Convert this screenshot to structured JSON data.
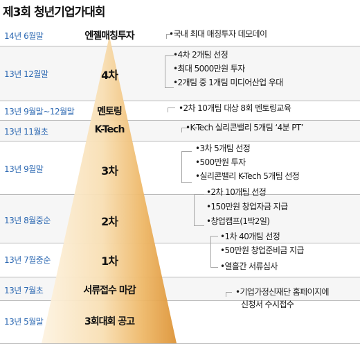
{
  "title": "제3회 청년기업가대회",
  "colors": {
    "date_text": "#2c68b2",
    "pyramid_light": "#fbeed6",
    "pyramid_dark": "#e3a24c",
    "pyramid_top": "#f7dcae"
  },
  "rows": [
    {
      "date": "14년 6월말",
      "stage": "엔젤매칭투자",
      "notes": [
        "•국내 최대 매칭투자 데모데이"
      ]
    },
    {
      "date": "13년 12월말",
      "stage": "4차",
      "notes": [
        "•4차 2개팀 선정",
        "•최대 5000만원 투자",
        "•2개팀 중 1개팀 미디어산업 우대"
      ]
    },
    {
      "date": "13년 9월말~12월말",
      "stage": "멘토링",
      "notes": [
        "•2차 10개팀 대상 8회 멘토링교육"
      ]
    },
    {
      "date": "13년 11월초",
      "stage": "K-Tech",
      "notes": [
        "•K-Tech 실리콘밸리 5개팀 ‘4분 PT’"
      ]
    },
    {
      "date": "13년 9월말",
      "stage": "3차",
      "notes": [
        "•3차 5개팀 선정",
        "•500만원 투자",
        "•실리콘밸리 K-Tech 5개팀 선정"
      ]
    },
    {
      "date": "13년 8월중순",
      "stage": "2차",
      "notes": [
        "•2차 10개팀 선정",
        "•150만원 창업자금 지급",
        "•창업캠프(1박2일)"
      ]
    },
    {
      "date": "13년 7월중순",
      "stage": "1차",
      "notes": [
        "•1차 40개팀 선정",
        "•50만원 창업준비금 지급",
        "•열흘간 서류심사"
      ]
    },
    {
      "date": "13년 7월초",
      "stage": "서류접수 마감",
      "notes": [
        "•기업가정신재단 홈페이지에",
        "신청서 수시접수"
      ]
    },
    {
      "date": "13년 5월말",
      "stage": "3회대회 공고",
      "notes": []
    }
  ]
}
